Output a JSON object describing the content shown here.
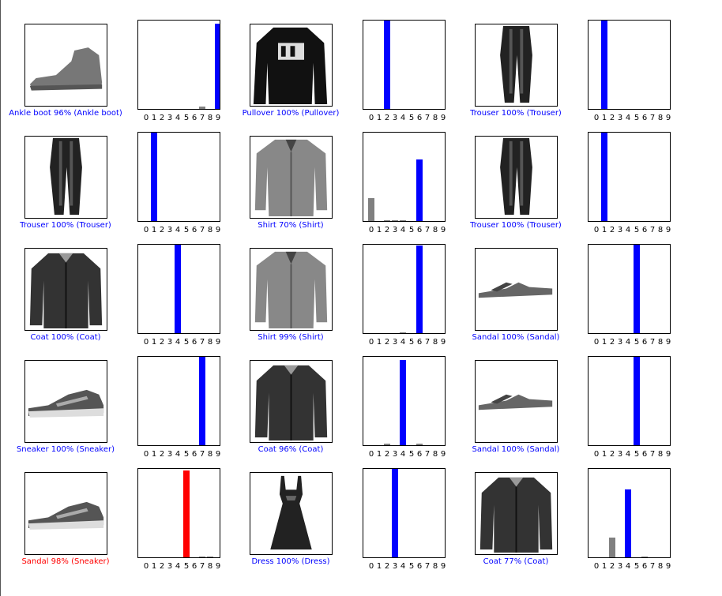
{
  "colors": {
    "correct": "#0000ff",
    "wrong": "#ff0000",
    "other": "#808080"
  },
  "tick_labels": [
    "0",
    "1",
    "2",
    "3",
    "4",
    "5",
    "6",
    "7",
    "8",
    "9"
  ],
  "chart_data": [
    {
      "type": "bar",
      "item": "ankle-boot-icon",
      "caption": "Ankle boot 96% (Ankle boot)",
      "caption_color": "#0000ff",
      "categories": [
        "0",
        "1",
        "2",
        "3",
        "4",
        "5",
        "6",
        "7",
        "8",
        "9"
      ],
      "values": [
        0,
        0,
        0,
        0,
        0,
        0,
        0,
        0.03,
        0,
        0.96
      ],
      "highlight": 9,
      "highlight_color": "#0000ff",
      "ylim": [
        0,
        1
      ]
    },
    {
      "type": "bar",
      "item": "pullover-icon",
      "caption": "Pullover 100% (Pullover)",
      "caption_color": "#0000ff",
      "categories": [
        "0",
        "1",
        "2",
        "3",
        "4",
        "5",
        "6",
        "7",
        "8",
        "9"
      ],
      "values": [
        0,
        0,
        1.0,
        0,
        0,
        0,
        0,
        0,
        0,
        0
      ],
      "highlight": 2,
      "highlight_color": "#0000ff",
      "ylim": [
        0,
        1
      ]
    },
    {
      "type": "bar",
      "item": "trouser-icon",
      "caption": "Trouser 100% (Trouser)",
      "caption_color": "#0000ff",
      "categories": [
        "0",
        "1",
        "2",
        "3",
        "4",
        "5",
        "6",
        "7",
        "8",
        "9"
      ],
      "values": [
        0,
        1.0,
        0,
        0,
        0,
        0,
        0,
        0,
        0,
        0
      ],
      "highlight": 1,
      "highlight_color": "#0000ff",
      "ylim": [
        0,
        1
      ]
    },
    {
      "type": "bar",
      "item": "trouser-icon",
      "caption": "Trouser 100% (Trouser)",
      "caption_color": "#0000ff",
      "categories": [
        "0",
        "1",
        "2",
        "3",
        "4",
        "5",
        "6",
        "7",
        "8",
        "9"
      ],
      "values": [
        0,
        1.0,
        0,
        0,
        0,
        0,
        0,
        0,
        0,
        0
      ],
      "highlight": 1,
      "highlight_color": "#0000ff",
      "ylim": [
        0,
        1
      ]
    },
    {
      "type": "bar",
      "item": "shirt-icon",
      "caption": "Shirt 70% (Shirt)",
      "caption_color": "#0000ff",
      "categories": [
        "0",
        "1",
        "2",
        "3",
        "4",
        "5",
        "6",
        "7",
        "8",
        "9"
      ],
      "values": [
        0.26,
        0,
        0.01,
        0.01,
        0.01,
        0,
        0.7,
        0,
        0,
        0
      ],
      "highlight": 6,
      "highlight_color": "#0000ff",
      "ylim": [
        0,
        1
      ]
    },
    {
      "type": "bar",
      "item": "trouser-icon",
      "caption": "Trouser 100% (Trouser)",
      "caption_color": "#0000ff",
      "categories": [
        "0",
        "1",
        "2",
        "3",
        "4",
        "5",
        "6",
        "7",
        "8",
        "9"
      ],
      "values": [
        0,
        1.0,
        0,
        0,
        0,
        0,
        0,
        0,
        0,
        0
      ],
      "highlight": 1,
      "highlight_color": "#0000ff",
      "ylim": [
        0,
        1
      ]
    },
    {
      "type": "bar",
      "item": "coat-icon",
      "caption": "Coat 100% (Coat)",
      "caption_color": "#0000ff",
      "categories": [
        "0",
        "1",
        "2",
        "3",
        "4",
        "5",
        "6",
        "7",
        "8",
        "9"
      ],
      "values": [
        0,
        0,
        0,
        0,
        1.0,
        0,
        0,
        0,
        0,
        0
      ],
      "highlight": 4,
      "highlight_color": "#0000ff",
      "ylim": [
        0,
        1
      ]
    },
    {
      "type": "bar",
      "item": "shirt-icon",
      "caption": "Shirt 99% (Shirt)",
      "caption_color": "#0000ff",
      "categories": [
        "0",
        "1",
        "2",
        "3",
        "4",
        "5",
        "6",
        "7",
        "8",
        "9"
      ],
      "values": [
        0,
        0,
        0,
        0,
        0.005,
        0,
        0.99,
        0,
        0,
        0
      ],
      "highlight": 6,
      "highlight_color": "#0000ff",
      "ylim": [
        0,
        1
      ]
    },
    {
      "type": "bar",
      "item": "sandal-icon",
      "caption": "Sandal 100% (Sandal)",
      "caption_color": "#0000ff",
      "categories": [
        "0",
        "1",
        "2",
        "3",
        "4",
        "5",
        "6",
        "7",
        "8",
        "9"
      ],
      "values": [
        0,
        0,
        0,
        0,
        0,
        1.0,
        0,
        0,
        0,
        0
      ],
      "highlight": 5,
      "highlight_color": "#0000ff",
      "ylim": [
        0,
        1
      ]
    },
    {
      "type": "bar",
      "item": "sneaker-icon",
      "caption": "Sneaker 100% (Sneaker)",
      "caption_color": "#0000ff",
      "categories": [
        "0",
        "1",
        "2",
        "3",
        "4",
        "5",
        "6",
        "7",
        "8",
        "9"
      ],
      "values": [
        0,
        0,
        0,
        0,
        0,
        0,
        0,
        1.0,
        0,
        0
      ],
      "highlight": 7,
      "highlight_color": "#0000ff",
      "ylim": [
        0,
        1
      ]
    },
    {
      "type": "bar",
      "item": "coat-icon",
      "caption": "Coat 96% (Coat)",
      "caption_color": "#0000ff",
      "categories": [
        "0",
        "1",
        "2",
        "3",
        "4",
        "5",
        "6",
        "7",
        "8",
        "9"
      ],
      "values": [
        0,
        0,
        0.02,
        0,
        0.96,
        0,
        0.02,
        0,
        0,
        0
      ],
      "highlight": 4,
      "highlight_color": "#0000ff",
      "ylim": [
        0,
        1
      ]
    },
    {
      "type": "bar",
      "item": "sandal-icon",
      "caption": "Sandal 100% (Sandal)",
      "caption_color": "#0000ff",
      "categories": [
        "0",
        "1",
        "2",
        "3",
        "4",
        "5",
        "6",
        "7",
        "8",
        "9"
      ],
      "values": [
        0,
        0,
        0,
        0,
        0,
        1.0,
        0,
        0,
        0,
        0
      ],
      "highlight": 5,
      "highlight_color": "#0000ff",
      "ylim": [
        0,
        1
      ]
    },
    {
      "type": "bar",
      "item": "sneaker-icon",
      "caption": "Sandal 98% (Sneaker)",
      "caption_color": "#ff0000",
      "categories": [
        "0",
        "1",
        "2",
        "3",
        "4",
        "5",
        "6",
        "7",
        "8",
        "9"
      ],
      "values": [
        0,
        0,
        0,
        0,
        0,
        0.98,
        0,
        0.01,
        0.01,
        0
      ],
      "highlight": 5,
      "highlight_color": "#ff0000",
      "ylim": [
        0,
        1
      ]
    },
    {
      "type": "bar",
      "item": "dress-icon",
      "caption": "Dress 100% (Dress)",
      "caption_color": "#0000ff",
      "categories": [
        "0",
        "1",
        "2",
        "3",
        "4",
        "5",
        "6",
        "7",
        "8",
        "9"
      ],
      "values": [
        0,
        0,
        0,
        1.0,
        0,
        0,
        0,
        0,
        0,
        0
      ],
      "highlight": 3,
      "highlight_color": "#0000ff",
      "ylim": [
        0,
        1
      ]
    },
    {
      "type": "bar",
      "item": "coat-icon",
      "caption": "Coat 77% (Coat)",
      "caption_color": "#0000ff",
      "categories": [
        "0",
        "1",
        "2",
        "3",
        "4",
        "5",
        "6",
        "7",
        "8",
        "9"
      ],
      "values": [
        0,
        0,
        0.22,
        0,
        0.77,
        0,
        0.01,
        0,
        0,
        0
      ],
      "highlight": 4,
      "highlight_color": "#0000ff",
      "ylim": [
        0,
        1
      ]
    }
  ]
}
